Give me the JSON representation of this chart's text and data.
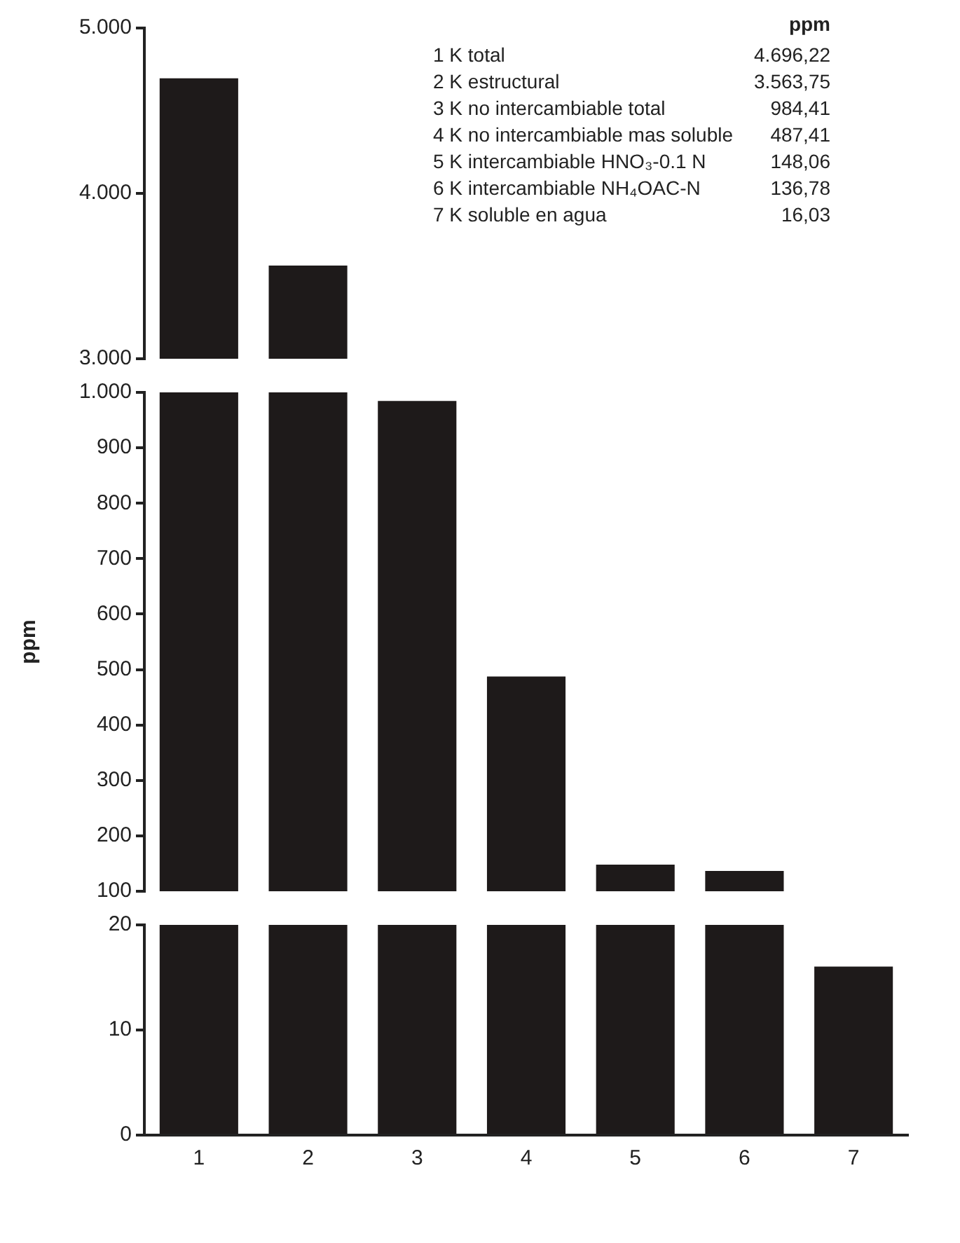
{
  "chart_data": [
    {
      "type": "bar",
      "categories": [
        "1",
        "2",
        "3",
        "4",
        "5",
        "6",
        "7"
      ],
      "values": [
        4696.22,
        3563.75,
        null,
        null,
        null,
        null,
        null
      ],
      "color": "#1e1a1a",
      "ylim": [
        3000,
        5000
      ],
      "yticks": [
        {
          "value": 3000,
          "label": "3.000"
        },
        {
          "value": 4000,
          "label": "4.000"
        },
        {
          "value": 5000,
          "label": "5.000"
        }
      ],
      "tick_labels": "y",
      "annotations": [
        "ppm",
        "1 K total",
        "4.696,22",
        "2 K estructural",
        "3.563,75",
        "3 K no intercambiable total",
        "984,41",
        "4 K no intercambiable mas soluble",
        "487,41",
        "5 K intercambiable HNO₃-0.1 N",
        "148,06",
        "6 K intercambiable NH₄OAC-N",
        "136,78",
        "7 K soluble en agua",
        "16,03"
      ]
    },
    {
      "type": "bar",
      "categories": [
        "1",
        "2",
        "3",
        "4",
        "5",
        "6",
        "7"
      ],
      "values": [
        1000,
        1000,
        984.41,
        487.41,
        148.06,
        136.78,
        null
      ],
      "color": "#1e1a1a",
      "ylim": [
        100,
        1000
      ],
      "yticks": [
        100,
        200,
        300,
        400,
        500,
        600,
        700,
        800,
        900,
        {
          "value": 1000,
          "label": "1.000"
        }
      ],
      "tick_labels": "y",
      "ylabel": "ppm"
    },
    {
      "type": "bar",
      "categories": [
        "1",
        "2",
        "3",
        "4",
        "5",
        "6",
        "7"
      ],
      "values": [
        20,
        20,
        20,
        20,
        20,
        20,
        16.03
      ],
      "color": "#1e1a1a",
      "ylim": [
        0,
        20
      ],
      "yticks": [
        0,
        10,
        20
      ]
    }
  ]
}
